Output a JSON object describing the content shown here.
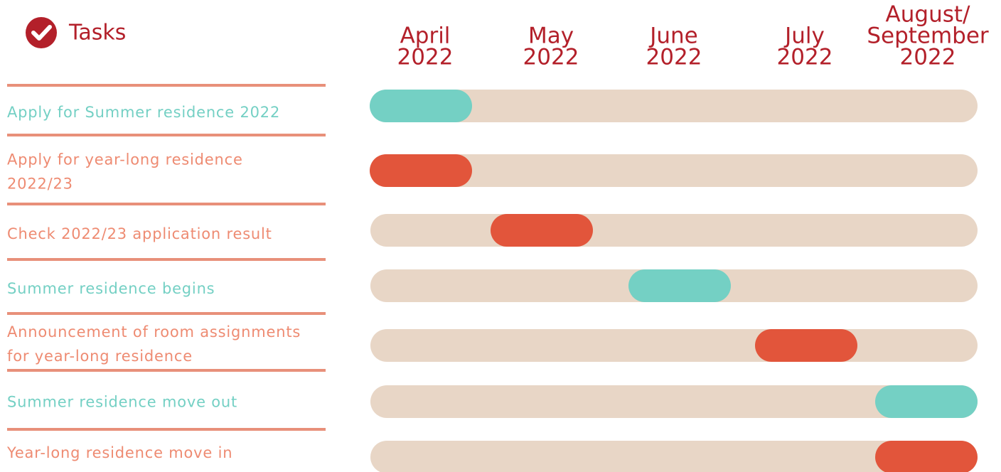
{
  "header": {
    "title": "Tasks"
  },
  "months": [
    [
      "April",
      "2022"
    ],
    [
      "May",
      "2022"
    ],
    [
      "June",
      "2022"
    ],
    [
      "July",
      "2022"
    ],
    [
      "August/",
      "September",
      "2022"
    ]
  ],
  "tasks": [
    {
      "label": [
        "Apply for Summer residence 2022"
      ],
      "month": 0,
      "color": "#74d0c4"
    },
    {
      "label": [
        "Apply for year-long residence",
        "2022/23"
      ],
      "month": 0,
      "color": "#e2553b"
    },
    {
      "label": [
        "Check 2022/23 application result"
      ],
      "month": 1,
      "color": "#e2553b"
    },
    {
      "label": [
        "Summer residence begins"
      ],
      "month": 2,
      "color": "#74d0c4"
    },
    {
      "label": [
        "Announcement of room assignments",
        "for year-long residence"
      ],
      "month": 3,
      "color": "#e2553b"
    },
    {
      "label": [
        "Summer residence move out"
      ],
      "month": 4,
      "color": "#74d0c4"
    },
    {
      "label": [
        "Year-long residence move in"
      ],
      "month": 4,
      "color": "#e2553b"
    }
  ]
}
